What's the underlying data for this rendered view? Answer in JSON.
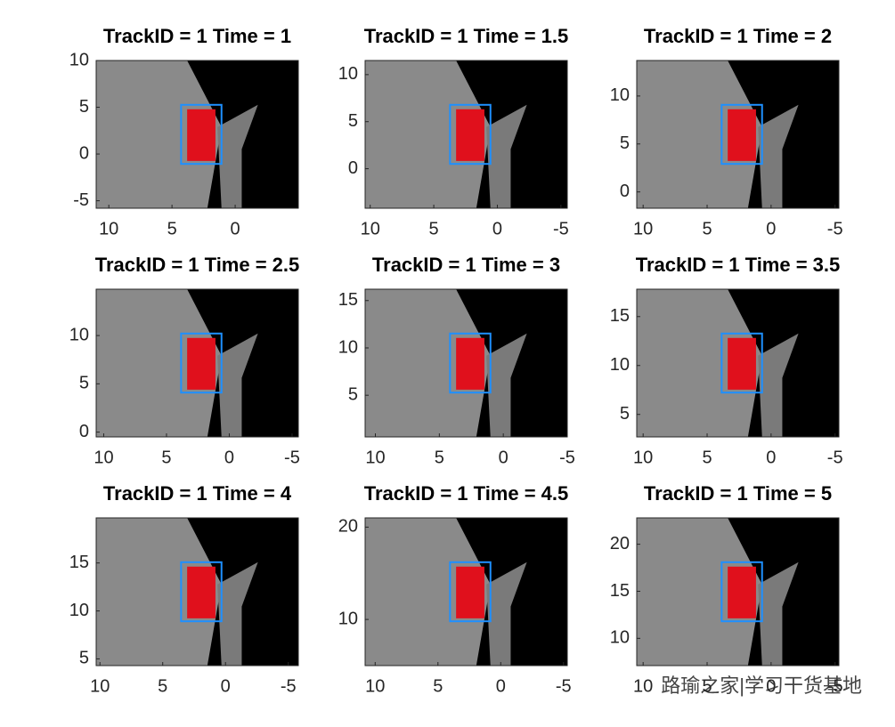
{
  "chart_data": [
    {
      "type": "image",
      "title": "TrackID = 1 Time = 1",
      "xlim": [
        11,
        -5
      ],
      "ylim": [
        -5.8,
        10
      ],
      "xticks": [
        10,
        5,
        0
      ],
      "yticks": [
        10,
        5,
        0,
        -5
      ]
    },
    {
      "type": "image",
      "title": "TrackID = 1 Time = 1.5",
      "xlim": [
        10.4,
        -5.5
      ],
      "ylim": [
        -4.2,
        11.5
      ],
      "xticks": [
        10,
        5,
        0,
        -5
      ],
      "yticks": [
        10,
        5,
        0
      ]
    },
    {
      "type": "image",
      "title": "TrackID = 1 Time = 2",
      "xlim": [
        10.5,
        -5.3
      ],
      "ylim": [
        -1.7,
        13.7
      ],
      "xticks": [
        10,
        5,
        0,
        -5
      ],
      "yticks": [
        10,
        5,
        0
      ]
    },
    {
      "type": "image",
      "title": "TrackID = 1 Time = 2.5",
      "xlim": [
        10.6,
        -5.5
      ],
      "ylim": [
        -0.5,
        14.8
      ],
      "xticks": [
        10,
        5,
        0,
        -5
      ],
      "yticks": [
        10,
        5,
        0
      ]
    },
    {
      "type": "image",
      "title": "TrackID = 1 Time = 3",
      "xlim": [
        10.8,
        -5
      ],
      "ylim": [
        0.6,
        16.2
      ],
      "xticks": [
        10,
        5,
        0,
        -5
      ],
      "yticks": [
        15,
        10,
        5
      ]
    },
    {
      "type": "image",
      "title": "TrackID = 1 Time = 3.5",
      "xlim": [
        10.5,
        -5.3
      ],
      "ylim": [
        2.7,
        17.8
      ],
      "xticks": [
        10,
        5,
        0,
        -5
      ],
      "yticks": [
        15,
        10,
        5
      ]
    },
    {
      "type": "image",
      "title": "TrackID = 1 Time = 4",
      "xlim": [
        10.3,
        -5.8
      ],
      "ylim": [
        4.3,
        19.7
      ],
      "xticks": [
        10,
        5,
        0,
        -5
      ],
      "yticks": [
        15,
        10,
        5
      ]
    },
    {
      "type": "image",
      "title": "TrackID = 1 Time = 4.5",
      "xlim": [
        10.8,
        -5.3
      ],
      "ylim": [
        5,
        21
      ],
      "xticks": [
        10,
        5,
        0,
        -5
      ],
      "yticks": [
        20,
        10
      ]
    },
    {
      "type": "image",
      "title": "TrackID = 1 Time = 5",
      "xlim": [
        10.5,
        -5.3
      ],
      "ylim": [
        7.1,
        22.8
      ],
      "xticks": [
        10,
        5,
        0,
        -5
      ],
      "yticks": [
        20,
        15,
        10
      ]
    }
  ],
  "watermark": "路瑜之家|学习干货基地"
}
